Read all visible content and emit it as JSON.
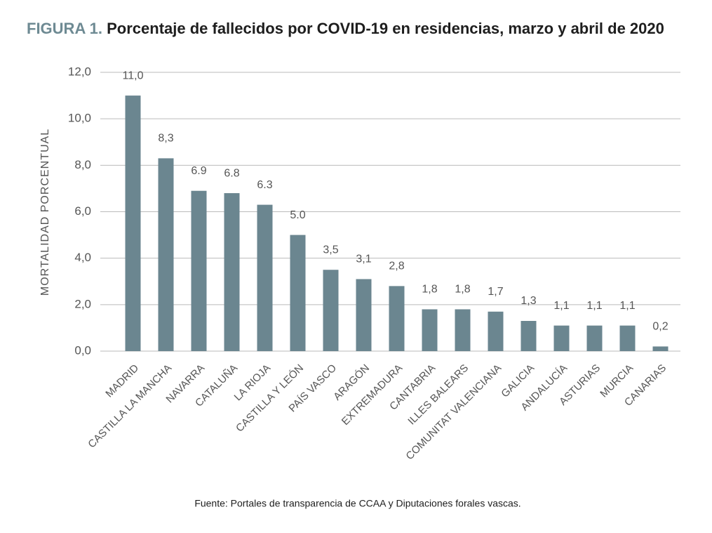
{
  "chart_data": {
    "type": "bar",
    "title_label": "FIGURA 1.",
    "title": "Porcentaje de fallecidos por COVID-19 en residencias, marzo y abril de 2020",
    "y_label": "MORTALIDAD PORCENTUAL",
    "source": "Fuente: Portales de transparencia de CCAA y Diputaciones forales vascas.",
    "categories": [
      "MADRID",
      "CASTILLA LA MANCHA",
      "NAVARRA",
      "CATALUÑA",
      "LA RIOJA",
      "CASTILLA Y LEÓN",
      "PAÍS VASCO",
      "ARAGÓN",
      "EXTREMADURA",
      "CANTABRIA",
      "ILLES BALEARS",
      "COMUNITAT VALENCIANA",
      "GALICIA",
      "ANDALUCÍA",
      "ASTURIAS",
      "MURCIA",
      "CANARIAS"
    ],
    "values": [
      11.0,
      8.3,
      6.9,
      6.8,
      6.3,
      5.0,
      3.5,
      3.1,
      2.8,
      1.8,
      1.8,
      1.7,
      1.3,
      1.1,
      1.1,
      1.1,
      0.2
    ],
    "value_labels": [
      "11,0",
      "8,3",
      "6.9",
      "6.8",
      "6.3",
      "5.0",
      "3,5",
      "3,1",
      "2,8",
      "1,8",
      "1,8",
      "1,7",
      "1,3",
      "1,1",
      "1,1",
      "1,1",
      "0,2"
    ],
    "color": "#6b8690",
    "ylim": [
      0,
      12
    ],
    "yticks": [
      {
        "value": 0,
        "label": "0,0"
      },
      {
        "value": 2,
        "label": "2,0"
      },
      {
        "value": 4,
        "label": "4,0"
      },
      {
        "value": 6,
        "label": "6,0"
      },
      {
        "value": 8,
        "label": "8,0"
      },
      {
        "value": 10,
        "label": "10,0"
      },
      {
        "value": 12,
        "label": "12,0"
      }
    ],
    "grid": true
  }
}
